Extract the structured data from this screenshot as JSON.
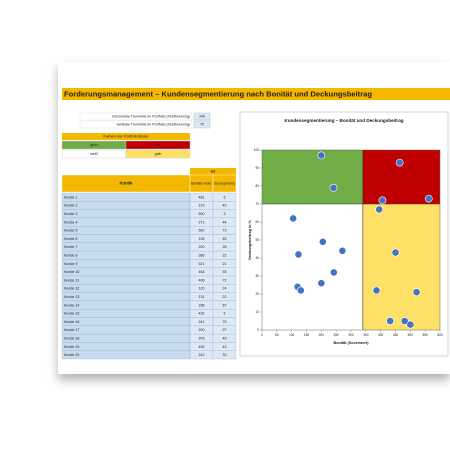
{
  "header": {
    "title": "Forderungsmanagement – Kundensegmentierung nach Bonität und Deckungsbeitrag"
  },
  "settings": [
    {
      "label": "horizontale Trennlinie im Portfolio (Feldtrennung)",
      "value": 340
    },
    {
      "label": "vertikale Trennlinie im Portfolio (Feldtrennung)",
      "value": 70
    }
  ],
  "colors": {
    "title": "Farben der Portfoliofelder",
    "fields": [
      {
        "label": "grün",
        "color": "#70ad47"
      },
      {
        "label": "rot",
        "color": "#c00000"
      },
      {
        "label": "weiß",
        "color": "#ffffff"
      },
      {
        "label": "gelb",
        "color": "#ffe066"
      }
    ]
  },
  "table": {
    "group": "Ist",
    "columns": [
      "Kunde",
      "Bonitäts-index",
      "Deckungs-beitrag"
    ],
    "rows": [
      [
        "Kunde 1",
        481,
        5
      ],
      [
        "Kunde 2",
        123,
        42
      ],
      [
        "Kunde 3",
        500,
        3
      ],
      [
        "Kunde 4",
        271,
        44
      ],
      [
        "Kunde 5",
        562,
        73
      ],
      [
        "Kunde 6",
        105,
        62
      ],
      [
        "Kunde 7",
        200,
        26
      ],
      [
        "Kunde 8",
        386,
        22
      ],
      [
        "Kunde 9",
        521,
        21
      ],
      [
        "Kunde 10",
        464,
        93
      ],
      [
        "Kunde 11",
        406,
        72
      ],
      [
        "Kunde 12",
        120,
        24
      ],
      [
        "Kunde 13",
        131,
        22
      ],
      [
        "Kunde 14",
        395,
        67
      ],
      [
        "Kunde 15",
        432,
        5
      ],
      [
        "Kunde 16",
        241,
        79
      ],
      [
        "Kunde 17",
        200,
        97
      ],
      [
        "Kunde 18",
        205,
        49
      ],
      [
        "Kunde 19",
        450,
        43
      ],
      [
        "Kunde 20",
        242,
        32
      ]
    ]
  },
  "chart_data": {
    "type": "scatter",
    "title": "Kundensegmentierung – Bonität und Deckungsbeitrag",
    "x_label": "Bonität (Scorewert)",
    "y_label": "Deckungsbeitrag in %",
    "xlim": [
      0,
      600
    ],
    "xticks": [
      0,
      50,
      100,
      150,
      200,
      250,
      300,
      350,
      400,
      450,
      500,
      550,
      600
    ],
    "ylim": [
      0,
      100
    ],
    "yticks": [
      0,
      10,
      20,
      30,
      40,
      50,
      60,
      70,
      80,
      90,
      100
    ],
    "color": "#4472c4"
  }
}
